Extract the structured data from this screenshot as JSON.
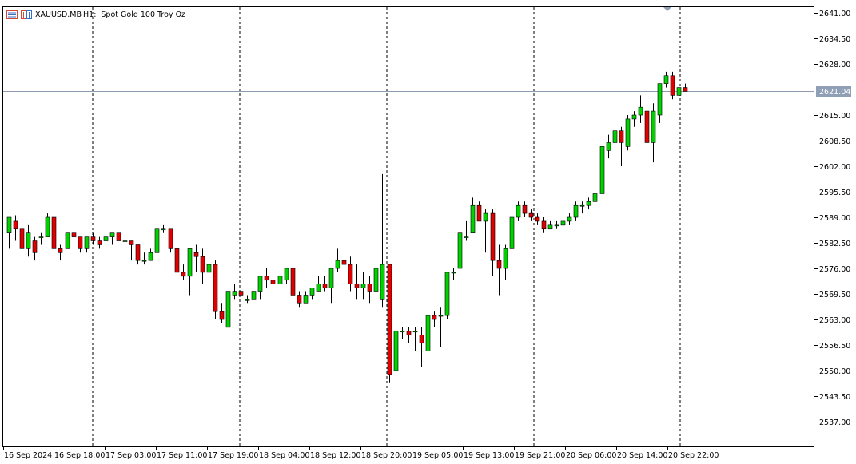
{
  "header": {
    "symbol": "XAUUSD.MB",
    "timeframe": "H1:",
    "description": "Spot Gold 100 Troy Oz"
  },
  "colors": {
    "bull": "#00d200",
    "bear": "#e00000",
    "wick": "#000000",
    "bid_line": "#8a9ab0",
    "bid_tag": "#8f9fb5",
    "period_separator": "#000000"
  },
  "current_price": "2621.04",
  "chart_data": {
    "type": "candlestick",
    "symbol": "XAUUSD.MB",
    "timeframe": "H1",
    "y_axis_ticks": [
      "2641.00",
      "2634.50",
      "2628.00",
      "2621.04",
      "2615.00",
      "2608.50",
      "2602.00",
      "2595.50",
      "2589.00",
      "2582.50",
      "2576.00",
      "2569.50",
      "2563.00",
      "2556.50",
      "2550.00",
      "2543.50",
      "2537.00"
    ],
    "x_axis_labels": [
      "16 Sep 2024",
      "16 Sep 18:00",
      "17 Sep 03:00",
      "17 Sep 11:00",
      "17 Sep 19:00",
      "18 Sep 04:00",
      "18 Sep 12:00",
      "18 Sep 20:00",
      "19 Sep 05:00",
      "19 Sep 13:00",
      "19 Sep 21:00",
      "20 Sep 06:00",
      "20 Sep 14:00",
      "20 Sep 22:00"
    ],
    "ylim": [
      2533,
      2642.5
    ],
    "candles": [
      [
        2585,
        2589,
        2581,
        2589
      ],
      [
        2588,
        2589.5,
        2583,
        2586
      ],
      [
        2586,
        2588,
        2576,
        2581
      ],
      [
        2581,
        2587,
        2579,
        2585
      ],
      [
        2583,
        2584,
        2578,
        2580
      ],
      [
        2584,
        2585,
        2582,
        2584
      ],
      [
        2584,
        2590,
        2584,
        2589
      ],
      [
        2589,
        2590,
        2577,
        2581
      ],
      [
        2581,
        2582,
        2578,
        2580
      ],
      [
        2581,
        2585,
        2581,
        2585
      ],
      [
        2585,
        2585,
        2581,
        2584
      ],
      [
        2584,
        2584,
        2580,
        2581
      ],
      [
        2581,
        2584,
        2580,
        2584
      ],
      [
        2584,
        2585,
        2582,
        2583
      ],
      [
        2583,
        2584,
        2581,
        2582
      ],
      [
        2583,
        2584,
        2582,
        2584
      ],
      [
        2584,
        2585,
        2582,
        2585
      ],
      [
        2585,
        2585,
        2583,
        2583
      ],
      [
        2583,
        2587,
        2583,
        2583
      ],
      [
        2583,
        2583,
        2578,
        2582
      ],
      [
        2582,
        2582,
        2577,
        2578
      ],
      [
        2578,
        2580,
        2577,
        2578
      ],
      [
        2578,
        2581,
        2578,
        2580
      ],
      [
        2580,
        2587,
        2579,
        2586
      ],
      [
        2586,
        2587,
        2585,
        2586
      ],
      [
        2586,
        2586,
        2580,
        2581
      ],
      [
        2581,
        2583,
        2573,
        2575
      ],
      [
        2575,
        2577,
        2573,
        2574
      ],
      [
        2574,
        2581,
        2569,
        2581
      ],
      [
        2580,
        2582,
        2575,
        2579
      ],
      [
        2579,
        2581,
        2572,
        2575
      ],
      [
        2575,
        2581,
        2574,
        2577
      ],
      [
        2577,
        2578,
        2563,
        2565
      ],
      [
        2565,
        2567,
        2562,
        2563
      ],
      [
        2561,
        2570,
        2561,
        2570
      ],
      [
        2569,
        2572,
        2568,
        2570
      ],
      [
        2570,
        2572,
        2567,
        2569
      ],
      [
        2568,
        2569,
        2567,
        2568
      ],
      [
        2568,
        2570,
        2568,
        2570
      ],
      [
        2570,
        2573,
        2568,
        2574
      ],
      [
        2574,
        2576,
        2571,
        2573
      ],
      [
        2573,
        2575,
        2571,
        2572
      ],
      [
        2572,
        2574,
        2572,
        2574
      ],
      [
        2573,
        2576,
        2572,
        2576
      ],
      [
        2576,
        2577,
        2569,
        2569
      ],
      [
        2569,
        2570,
        2566,
        2567
      ],
      [
        2567,
        2570,
        2567,
        2569
      ],
      [
        2569,
        2571,
        2568,
        2571
      ],
      [
        2570,
        2574,
        2570,
        2572
      ],
      [
        2572,
        2574,
        2570,
        2571
      ],
      [
        2571,
        2576,
        2567,
        2576
      ],
      [
        2576,
        2581,
        2575,
        2578
      ],
      [
        2578,
        2580,
        2573,
        2577
      ],
      [
        2577,
        2579,
        2570,
        2572
      ],
      [
        2572,
        2577,
        2568,
        2571
      ],
      [
        2571,
        2575,
        2568,
        2572
      ],
      [
        2572,
        2574,
        2567,
        2570
      ],
      [
        2570,
        2576,
        2569,
        2576
      ],
      [
        2568,
        2600,
        2566,
        2577
      ],
      [
        2577,
        2577,
        2547,
        2549
      ],
      [
        2550,
        2560,
        2548,
        2560
      ],
      [
        2560,
        2561,
        2558,
        2560
      ],
      [
        2560,
        2561,
        2557,
        2559
      ],
      [
        2560,
        2561,
        2555,
        2560
      ],
      [
        2559,
        2561,
        2551,
        2557
      ],
      [
        2555,
        2566,
        2554,
        2564
      ],
      [
        2564,
        2565,
        2561,
        2563
      ],
      [
        2564,
        2566,
        2556,
        2564
      ],
      [
        2564,
        2575,
        2563,
        2575
      ],
      [
        2575,
        2576,
        2573,
        2575
      ],
      [
        2576,
        2585,
        2576,
        2585
      ],
      [
        2584,
        2588,
        2583,
        2584
      ],
      [
        2585,
        2594,
        2585,
        2592
      ],
      [
        2592,
        2593,
        2588,
        2588
      ],
      [
        2588,
        2591,
        2580,
        2590
      ],
      [
        2590,
        2591,
        2574,
        2578
      ],
      [
        2578,
        2582,
        2569,
        2576
      ],
      [
        2576,
        2582,
        2573,
        2581
      ],
      [
        2581,
        2590,
        2579,
        2589
      ],
      [
        2589,
        2593,
        2588,
        2592
      ],
      [
        2592,
        2593,
        2589,
        2590
      ],
      [
        2590,
        2591,
        2588,
        2589
      ],
      [
        2589,
        2590,
        2587,
        2588
      ],
      [
        2588,
        2589,
        2585,
        2586
      ],
      [
        2586,
        2588,
        2586,
        2587
      ],
      [
        2587,
        2588,
        2586,
        2587
      ],
      [
        2587,
        2589,
        2586,
        2588
      ],
      [
        2588,
        2590,
        2587,
        2589
      ],
      [
        2589,
        2593,
        2588,
        2592
      ],
      [
        2592,
        2593,
        2590,
        2592
      ],
      [
        2592,
        2594,
        2591,
        2593
      ],
      [
        2593,
        2596,
        2592,
        2595
      ],
      [
        2595,
        2607,
        2595,
        2607
      ],
      [
        2606,
        2610,
        2604,
        2608
      ],
      [
        2608,
        2611,
        2605,
        2611
      ],
      [
        2611,
        2612,
        2602,
        2608
      ],
      [
        2607,
        2615,
        2606,
        2614
      ],
      [
        2614,
        2616,
        2612,
        2615
      ],
      [
        2615,
        2620,
        2613,
        2617
      ],
      [
        2616,
        2618,
        2608,
        2608
      ],
      [
        2608,
        2618,
        2603,
        2616
      ],
      [
        2615,
        2623,
        2613,
        2623
      ],
      [
        2623,
        2626,
        2622,
        2625
      ],
      [
        2625,
        2626,
        2619,
        2620
      ],
      [
        2620,
        2623,
        2618,
        2622
      ],
      [
        2622,
        2623,
        2621,
        2621
      ]
    ]
  }
}
